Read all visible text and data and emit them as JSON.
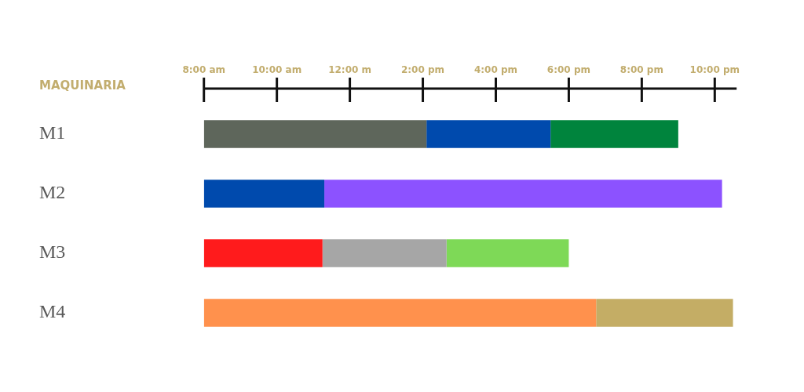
{
  "chart_data": {
    "type": "bar",
    "orientation": "horizontal",
    "ylabel": "MAQUINARIA",
    "categories": [
      "M1",
      "M2",
      "M3",
      "M4"
    ],
    "series": [
      {
        "colors": [
          "#5e665b",
          "#004aad",
          "#ff1b1c",
          "#ff914d"
        ],
        "base": [
          8,
          8,
          8,
          8
        ],
        "values": [
          6.1,
          3.3,
          3.25,
          10.75
        ]
      },
      {
        "colors": [
          "#004aad",
          "#8c52ff",
          "#a6a6a6",
          "#c4ad65"
        ],
        "base": [
          14.1,
          11.3,
          11.25,
          18.75
        ],
        "values": [
          3.4,
          10.9,
          3.4,
          3.75
        ]
      },
      {
        "colors": [
          "#00843d",
          null,
          "#7ed957",
          null
        ],
        "base": [
          17.5,
          null,
          14.65,
          null
        ],
        "values": [
          3.5,
          null,
          3.35,
          null
        ]
      }
    ],
    "xlim": [
      8,
      22.6
    ],
    "xticks": [
      {
        "value": 8,
        "label": "8:00 am"
      },
      {
        "value": 10,
        "label": "10:00 am"
      },
      {
        "value": 12,
        "label": "12:00 m"
      },
      {
        "value": 14,
        "label": "2:00 pm"
      },
      {
        "value": 16,
        "label": "4:00 pm"
      },
      {
        "value": 18,
        "label": "6:00 pm"
      },
      {
        "value": 20,
        "label": "8:00 pm"
      },
      {
        "value": 22,
        "label": "10:00 pm"
      }
    ],
    "grid": false,
    "legend": false
  }
}
